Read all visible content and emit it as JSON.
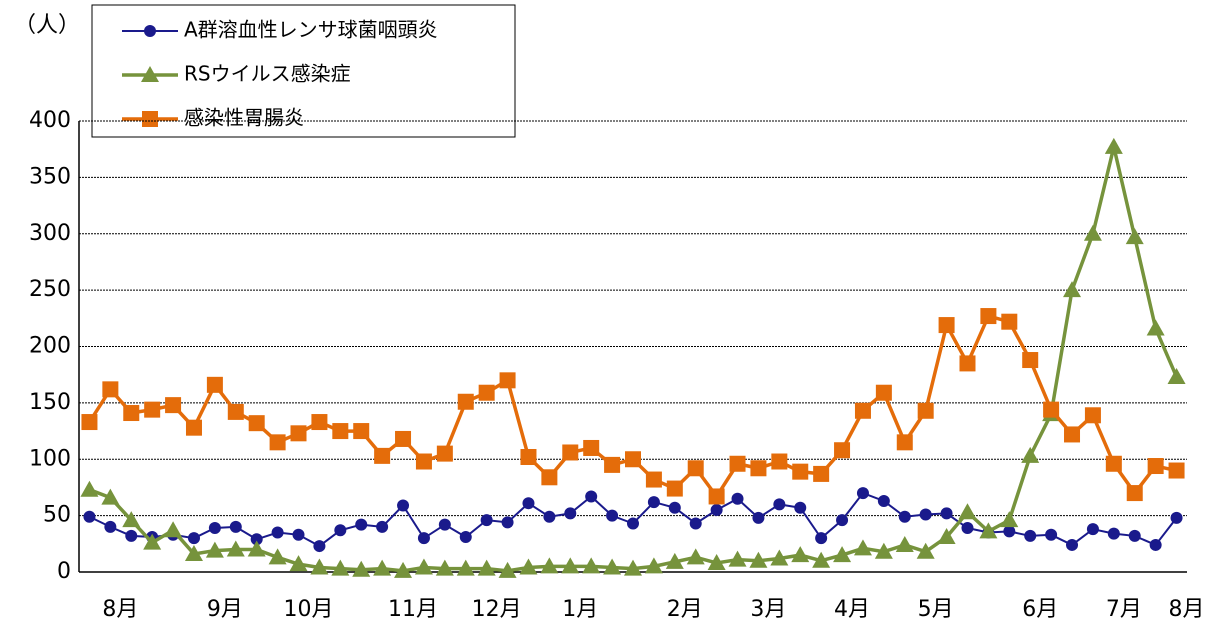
{
  "chart_data": {
    "type": "line",
    "y_unit": "（人）",
    "categories": [
      null,
      "8月",
      null,
      null,
      null,
      null,
      "9月",
      null,
      null,
      null,
      "10月",
      null,
      null,
      null,
      null,
      "11月",
      null,
      null,
      null,
      "12月",
      null,
      null,
      null,
      "1月",
      null,
      null,
      null,
      null,
      "2月",
      null,
      null,
      null,
      "3月",
      null,
      null,
      null,
      "4月",
      null,
      null,
      null,
      "5月",
      null,
      null,
      null,
      null,
      "6月",
      null,
      null,
      null,
      "7月",
      null,
      null,
      "8月"
    ],
    "series": [
      {
        "name": "A群溶血性レンサ球菌咽頭炎",
        "color": "#1a1a8c",
        "marker": "circle",
        "values": [
          49,
          40,
          32,
          31,
          33,
          30,
          39,
          40,
          29,
          35,
          33,
          23,
          37,
          42,
          40,
          59,
          30,
          42,
          31,
          46,
          44,
          61,
          49,
          52,
          67,
          50,
          43,
          62,
          57,
          43,
          55,
          65,
          48,
          60,
          57,
          30,
          46,
          70,
          63,
          49,
          51,
          52,
          39,
          35,
          36,
          32,
          33,
          24,
          38,
          34,
          32,
          24,
          48
        ]
      },
      {
        "name": "RSウイルス感染症",
        "color": "#76933c",
        "marker": "triangle",
        "values": [
          73,
          66,
          46,
          26,
          37,
          16,
          19,
          20,
          20,
          13,
          7,
          4,
          3,
          2,
          3,
          1,
          4,
          3,
          3,
          3,
          1,
          4,
          5,
          5,
          5,
          4,
          3,
          5,
          9,
          13,
          8,
          11,
          10,
          12,
          15,
          10,
          15,
          21,
          18,
          24,
          18,
          31,
          53,
          36,
          46,
          103,
          140,
          250,
          300,
          377,
          297,
          216,
          173
        ]
      },
      {
        "name": "感染性胃腸炎",
        "color": "#e46c0a",
        "marker": "square",
        "values": [
          133,
          162,
          141,
          144,
          148,
          128,
          166,
          142,
          132,
          115,
          123,
          133,
          125,
          125,
          103,
          118,
          98,
          105,
          151,
          159,
          170,
          102,
          84,
          106,
          110,
          95,
          100,
          82,
          74,
          92,
          67,
          96,
          92,
          98,
          89,
          87,
          108,
          143,
          159,
          115,
          143,
          219,
          185,
          227,
          222,
          188,
          144,
          122,
          139,
          96,
          70,
          94,
          90
        ]
      }
    ],
    "ylim": [
      0,
      400
    ],
    "yticks": [
      0,
      50,
      100,
      150,
      200,
      250,
      300,
      350,
      400
    ],
    "grid": true
  }
}
